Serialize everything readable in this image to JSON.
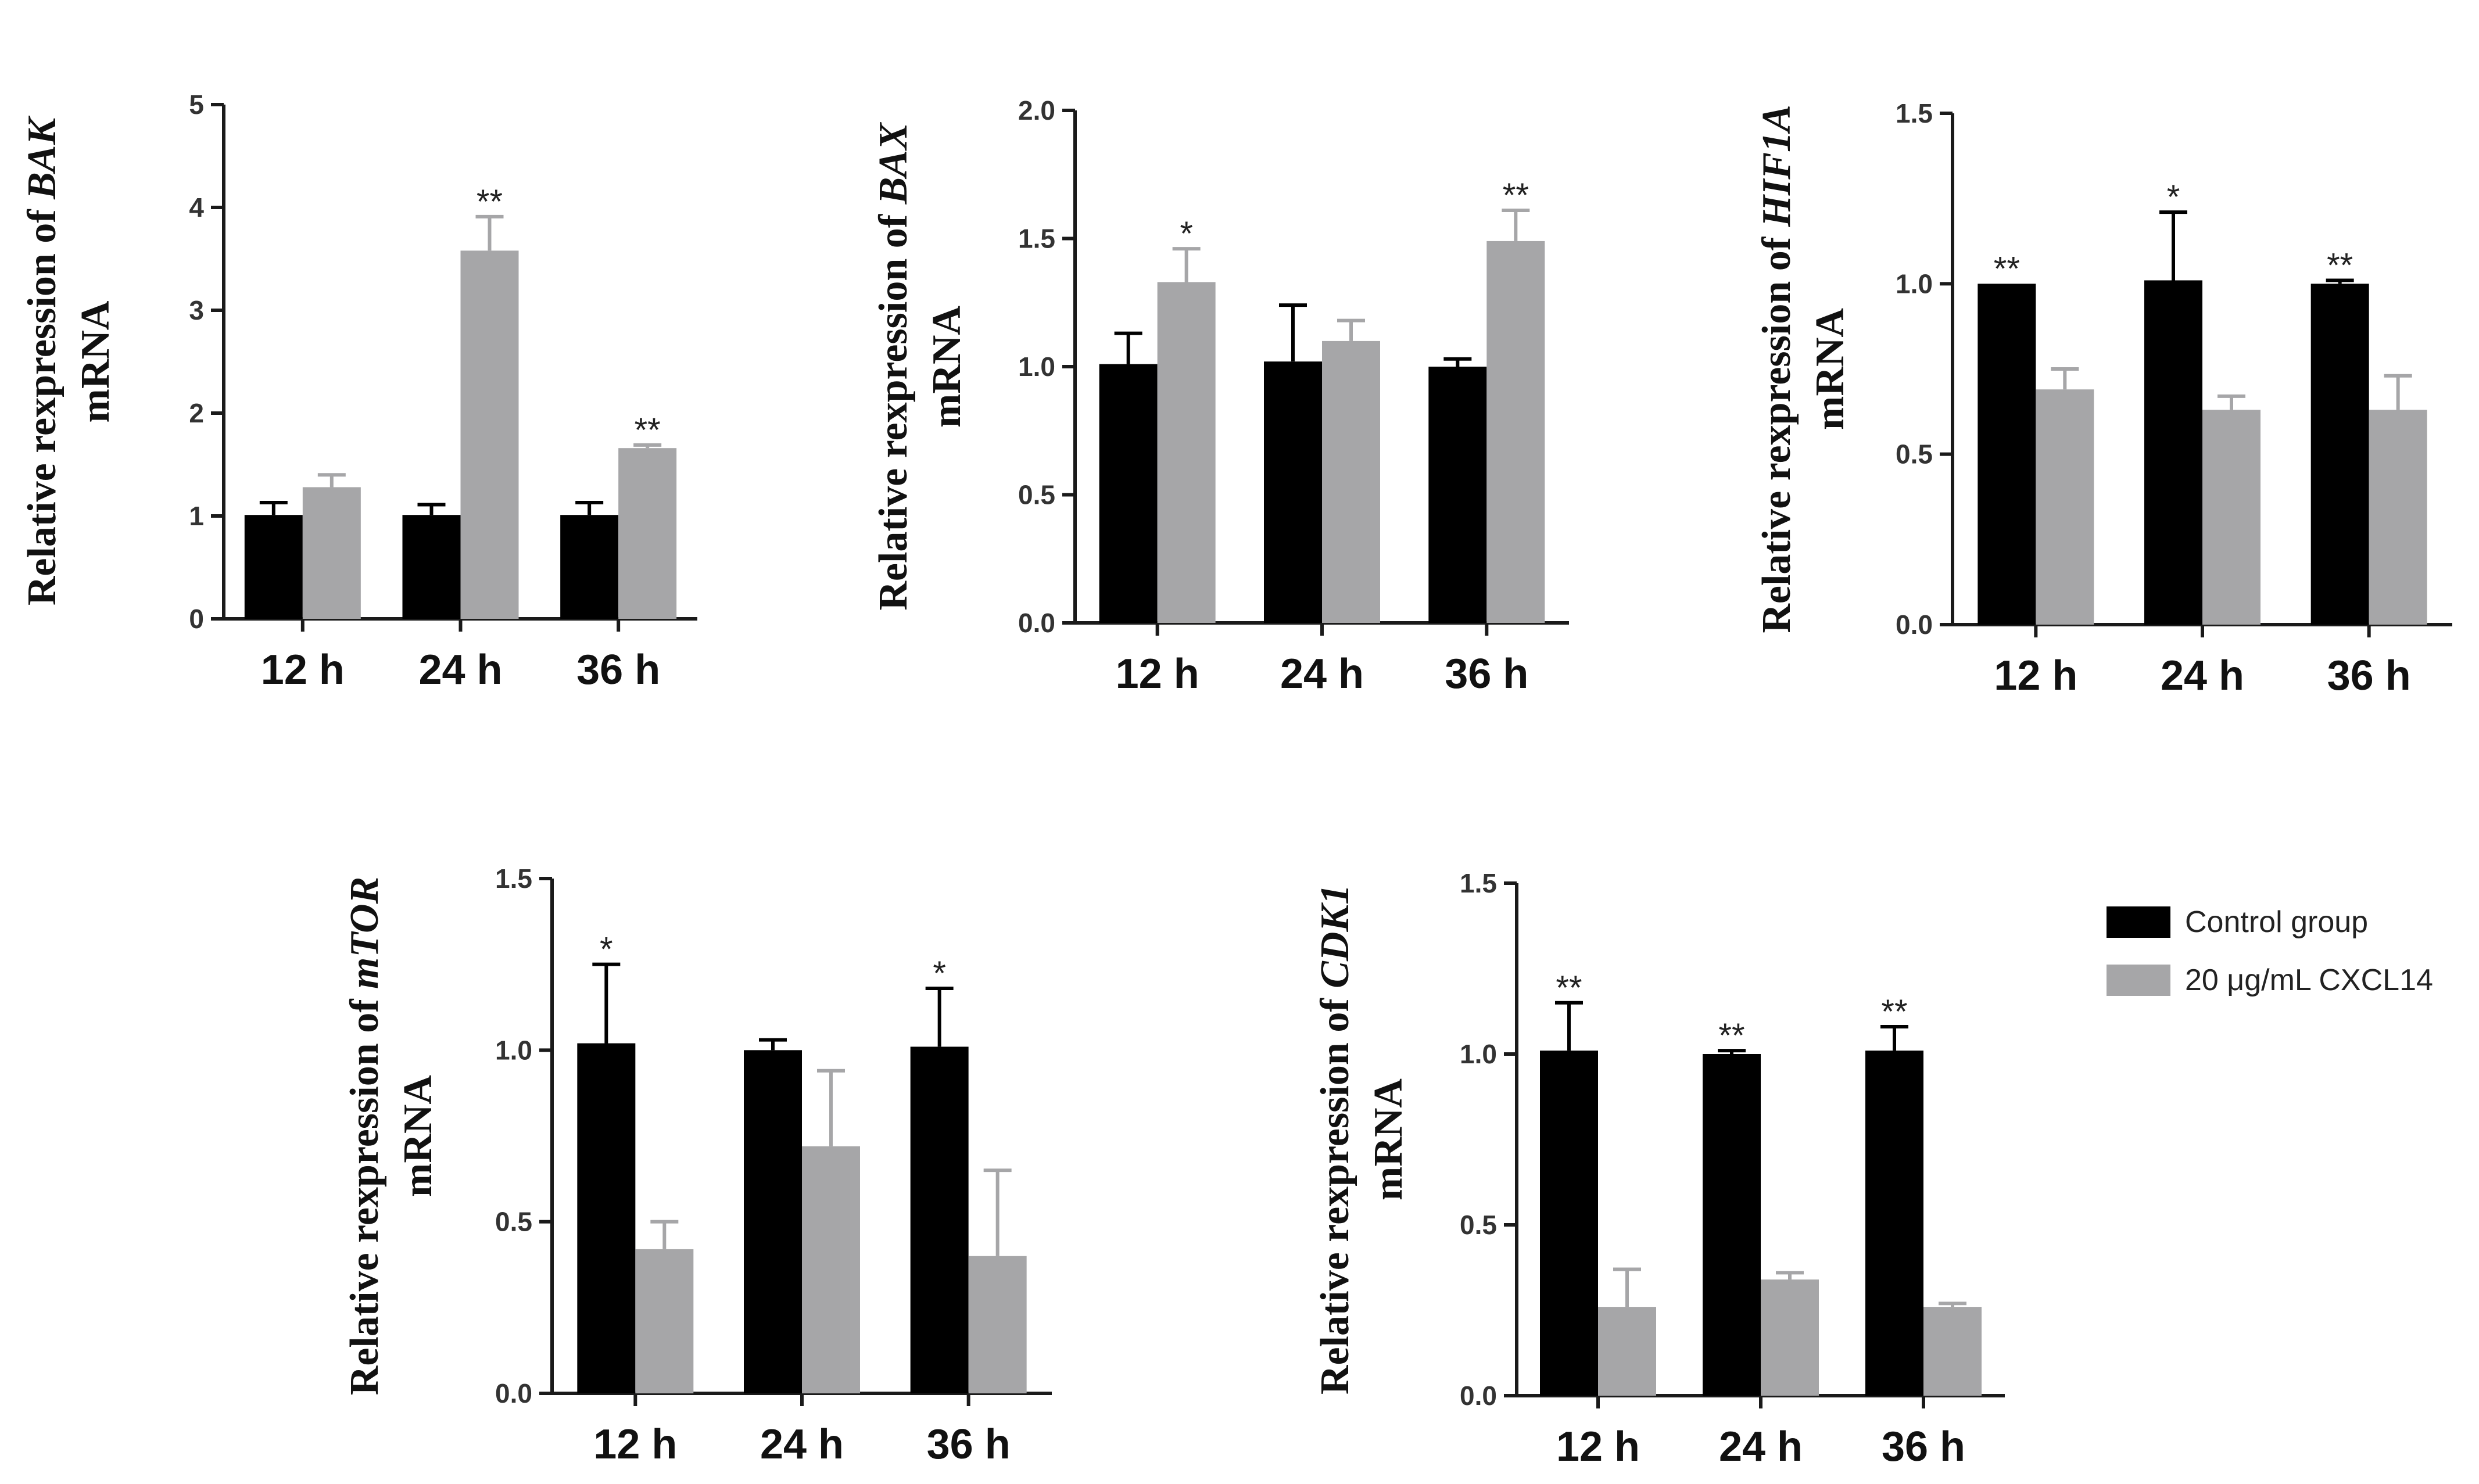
{
  "colors": {
    "control": "#000000",
    "treatment": "#a6a6a8",
    "axis": "#1a1a1a"
  },
  "legend": {
    "items": [
      {
        "label": "Control group",
        "color": "#000000"
      },
      {
        "label": "20 μg/mL CXCL14",
        "color": "#a6a6a8"
      }
    ]
  },
  "chart_data": [
    {
      "type": "bar",
      "gene": "BAK",
      "ylabel_prefix": "Relative rexpression of",
      "ylabel_suffix": "mRNA",
      "categories": [
        "12 h",
        "24 h",
        "36 h"
      ],
      "ylim": [
        0,
        5
      ],
      "yticks": [
        "0",
        "1",
        "2",
        "3",
        "4",
        "5"
      ],
      "series": [
        {
          "name": "Control group",
          "values": [
            1.01,
            1.01,
            1.01
          ],
          "errors": [
            0.12,
            0.1,
            0.12
          ],
          "significance": [
            "",
            "",
            ""
          ]
        },
        {
          "name": "20 μg/mL CXCL14",
          "values": [
            1.28,
            3.58,
            1.66
          ],
          "errors": [
            0.12,
            0.33,
            0.03
          ],
          "significance": [
            "",
            "**",
            "**"
          ]
        }
      ]
    },
    {
      "type": "bar",
      "gene": "BAX",
      "ylabel_prefix": "Relative rexpression of",
      "ylabel_suffix": "mRNA",
      "categories": [
        "12 h",
        "24 h",
        "36 h"
      ],
      "ylim": [
        0,
        2.0
      ],
      "yticks": [
        "0.0",
        "0.5",
        "1.0",
        "1.5",
        "2.0"
      ],
      "series": [
        {
          "name": "Control group",
          "values": [
            1.01,
            1.02,
            1.0
          ],
          "errors": [
            0.12,
            0.22,
            0.03
          ],
          "significance": [
            "",
            "",
            ""
          ]
        },
        {
          "name": "20 μg/mL CXCL14",
          "values": [
            1.33,
            1.1,
            1.49
          ],
          "errors": [
            0.13,
            0.08,
            0.12
          ],
          "significance": [
            "*",
            "",
            "**"
          ]
        }
      ]
    },
    {
      "type": "bar",
      "gene": "HIF1A",
      "ylabel_prefix": "Relative rexpression of",
      "ylabel_suffix": "mRNA",
      "categories": [
        "12 h",
        "24 h",
        "36 h"
      ],
      "ylim": [
        0,
        1.5
      ],
      "yticks": [
        "0.0",
        "0.5",
        "1.0",
        "1.5"
      ],
      "series": [
        {
          "name": "Control group",
          "values": [
            1.0,
            1.01,
            1.0
          ],
          "errors": [
            0.0,
            0.2,
            0.01
          ],
          "significance": [
            "**",
            "*",
            "**"
          ]
        },
        {
          "name": "20 μg/mL CXCL14",
          "values": [
            0.69,
            0.63,
            0.63
          ],
          "errors": [
            0.06,
            0.04,
            0.1
          ],
          "significance": [
            "",
            "",
            ""
          ]
        }
      ]
    },
    {
      "type": "bar",
      "gene": "mTOR",
      "ylabel_prefix": "Relative rexpression of",
      "ylabel_suffix": "mRNA",
      "categories": [
        "12 h",
        "24 h",
        "36 h"
      ],
      "ylim": [
        0,
        1.5
      ],
      "yticks": [
        "0.0",
        "0.5",
        "1.0",
        "1.5"
      ],
      "series": [
        {
          "name": "Control group",
          "values": [
            1.02,
            1.0,
            1.01
          ],
          "errors": [
            0.23,
            0.03,
            0.17
          ],
          "significance": [
            "*",
            "",
            "*"
          ]
        },
        {
          "name": "20 μg/mL CXCL14",
          "values": [
            0.42,
            0.72,
            0.4
          ],
          "errors": [
            0.08,
            0.22,
            0.25
          ],
          "significance": [
            "",
            "",
            ""
          ]
        }
      ]
    },
    {
      "type": "bar",
      "gene": "CDK1",
      "ylabel_prefix": "Relative rexpression of",
      "ylabel_suffix": "mRNA",
      "categories": [
        "12 h",
        "24 h",
        "36 h"
      ],
      "ylim": [
        0,
        1.5
      ],
      "yticks": [
        "0.0",
        "0.5",
        "1.0",
        "1.5"
      ],
      "series": [
        {
          "name": "Control group",
          "values": [
            1.01,
            1.0,
            1.01
          ],
          "errors": [
            0.14,
            0.01,
            0.07
          ],
          "significance": [
            "**",
            "**",
            "**"
          ]
        },
        {
          "name": "20 μg/mL CXCL14",
          "values": [
            0.26,
            0.34,
            0.26
          ],
          "errors": [
            0.11,
            0.02,
            0.01
          ],
          "significance": [
            "",
            "",
            ""
          ]
        }
      ]
    }
  ]
}
